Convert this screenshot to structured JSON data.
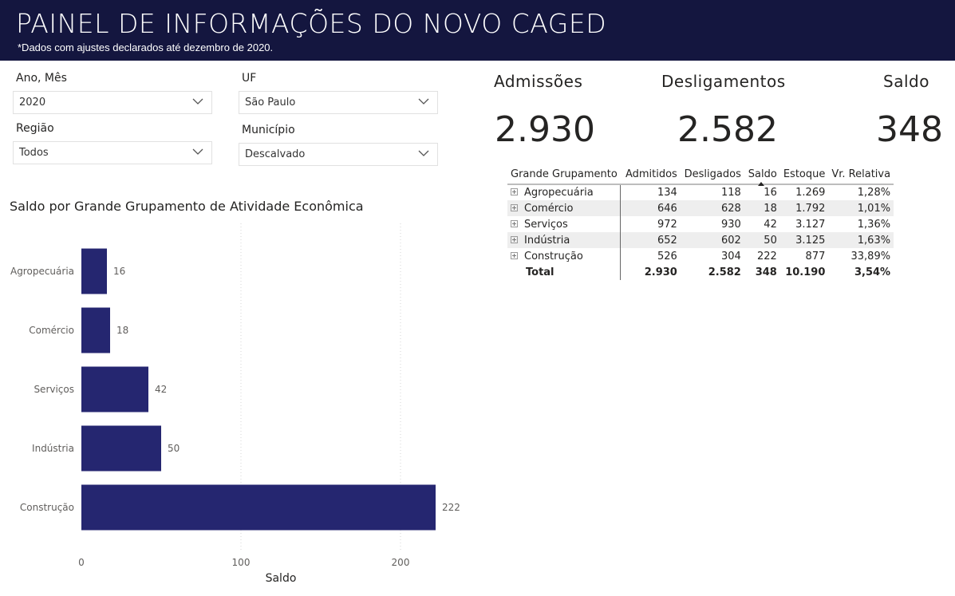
{
  "header": {
    "title": "PAINEL DE INFORMAÇÕES DO NOVO CAGED",
    "subtitle": "*Dados com ajustes declarados até dezembro de 2020."
  },
  "filters": {
    "ano_mes": {
      "label": "Ano, Mês",
      "value": "2020"
    },
    "uf": {
      "label": "UF",
      "value": "São Paulo"
    },
    "regiao": {
      "label": "Região",
      "value": "Todos"
    },
    "municipio": {
      "label": "Município",
      "value": "Descalvado"
    }
  },
  "kpis": {
    "admissoes": {
      "label": "Admissões",
      "value": "2.930"
    },
    "desligamentos": {
      "label": "Desligamentos",
      "value": "2.582"
    },
    "saldo": {
      "label": "Saldo",
      "value": "348"
    }
  },
  "table": {
    "headers": [
      "Grande Grupamento",
      "Admitidos",
      "Desligados",
      "Saldo",
      "Estoque",
      "Vr. Relativa"
    ],
    "rows": [
      [
        "Agropecuária",
        "134",
        "118",
        "16",
        "1.269",
        "1,28%"
      ],
      [
        "Comércio",
        "646",
        "628",
        "18",
        "1.792",
        "1,01%"
      ],
      [
        "Serviços",
        "972",
        "930",
        "42",
        "3.127",
        "1,36%"
      ],
      [
        "Indústria",
        "652",
        "602",
        "50",
        "3.125",
        "1,63%"
      ],
      [
        "Construção",
        "526",
        "304",
        "222",
        "877",
        "33,89%"
      ]
    ],
    "total": [
      "Total",
      "2.930",
      "2.582",
      "348",
      "10.190",
      "3,54%"
    ]
  },
  "chart": {
    "title": "Saldo por Grande Grupamento de Atividade Econômica",
    "bar_color": "#252670"
  },
  "chart_data": {
    "type": "bar",
    "orientation": "horizontal",
    "categories": [
      "Agropecuária",
      "Comércio",
      "Serviços",
      "Indústria",
      "Construção"
    ],
    "values": [
      16,
      18,
      42,
      50,
      222
    ],
    "data_labels": [
      "16",
      "18",
      "42",
      "50",
      "222"
    ],
    "xlabel": "Saldo",
    "xlim": [
      0,
      222
    ],
    "xticks": [
      "0",
      "100",
      "200"
    ],
    "grid": true
  }
}
